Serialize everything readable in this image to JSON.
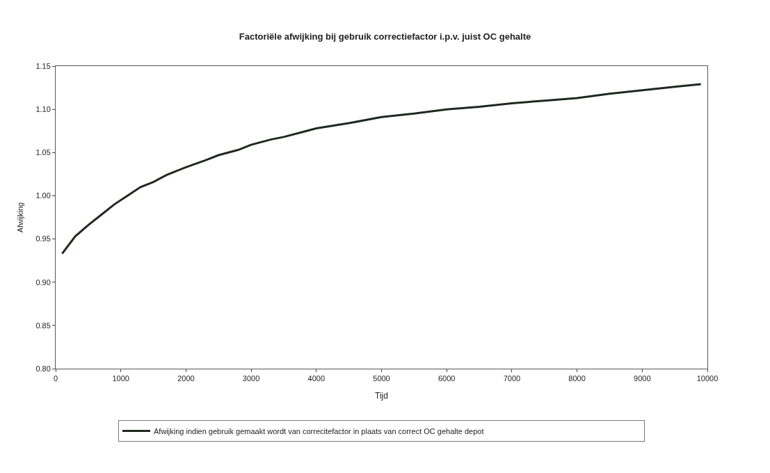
{
  "chart_data": {
    "type": "line",
    "title": "Factoriële afwijking bij gebruik correctiefactor i.p.v. juist OC gehalte",
    "xlabel": "Tijd",
    "ylabel": "Afwijking",
    "x": [
      100,
      300,
      500,
      700,
      900,
      1100,
      1300,
      1500,
      1700,
      2000,
      2300,
      2500,
      2800,
      3000,
      3300,
      3500,
      3800,
      4000,
      4500,
      5000,
      5500,
      6000,
      6500,
      7000,
      7500,
      8000,
      8500,
      9000,
      9500,
      9900
    ],
    "series": [
      {
        "name": "Afwijking indien gebruik gemaakt wordt van correcitefactor in plaats van correct OC gehalte depot",
        "color": "#1e2a1e",
        "values": [
          0.933,
          0.953,
          0.966,
          0.978,
          0.99,
          1.0,
          1.01,
          1.016,
          1.024,
          1.033,
          1.041,
          1.047,
          1.053,
          1.059,
          1.065,
          1.068,
          1.074,
          1.078,
          1.084,
          1.091,
          1.095,
          1.1,
          1.103,
          1.107,
          1.11,
          1.113,
          1.118,
          1.122,
          1.126,
          1.129
        ]
      }
    ],
    "xlim": [
      0,
      10000
    ],
    "xticks": [
      0,
      1000,
      2000,
      3000,
      4000,
      5000,
      6000,
      7000,
      8000,
      9000,
      10000
    ],
    "ylim": [
      0.8,
      1.15
    ],
    "yticks": [
      {
        "value": 0.8,
        "label": "0.80"
      },
      {
        "value": 0.85,
        "label": "0.85"
      },
      {
        "value": 0.9,
        "label": "0.90"
      },
      {
        "value": 0.95,
        "label": "0.95"
      },
      {
        "value": 1.0,
        "label": "1.00"
      },
      {
        "value": 1.05,
        "label": "1.05"
      },
      {
        "value": 1.1,
        "label": "1.10"
      },
      {
        "value": 1.15,
        "label": "1.15"
      }
    ],
    "legend": "bottom",
    "marker": "none",
    "line_style": "solid"
  }
}
